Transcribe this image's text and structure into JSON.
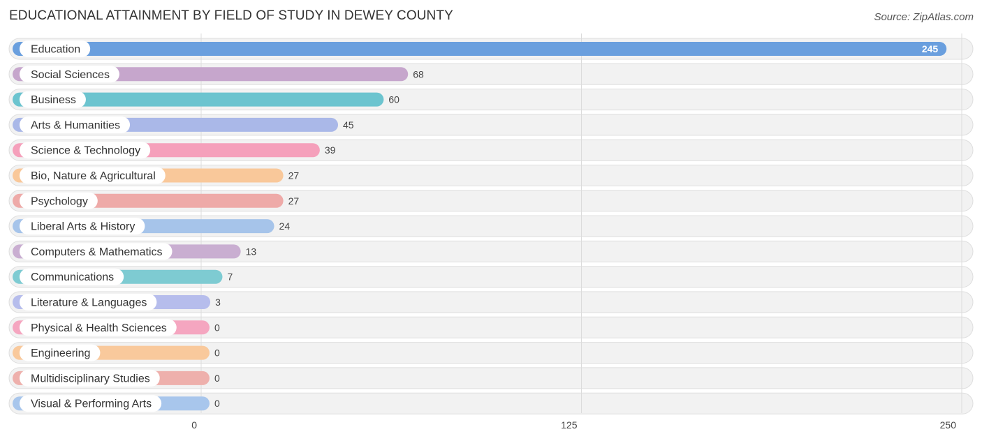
{
  "header": {
    "title": "EDUCATIONAL ATTAINMENT BY FIELD OF STUDY IN DEWEY COUNTY",
    "source": "Source: ZipAtlas.com"
  },
  "chart_data": {
    "type": "bar",
    "orientation": "horizontal",
    "categories": [
      "Education",
      "Social Sciences",
      "Business",
      "Arts & Humanities",
      "Science & Technology",
      "Bio, Nature & Agricultural",
      "Psychology",
      "Liberal Arts & History",
      "Computers & Mathematics",
      "Communications",
      "Literature & Languages",
      "Physical & Health Sciences",
      "Engineering",
      "Multidisciplinary Studies",
      "Visual & Performing Arts"
    ],
    "values": [
      245,
      68,
      60,
      45,
      39,
      27,
      27,
      24,
      13,
      7,
      3,
      0,
      0,
      0,
      0
    ],
    "colors": [
      "#6a9fde",
      "#c6a6cc",
      "#6cc4cf",
      "#aab8e8",
      "#f5a0bb",
      "#f9c89a",
      "#eeaaa8",
      "#a6c4ea",
      "#c9aed1",
      "#7ecbd2",
      "#b6bdec",
      "#f5a6c0",
      "#f9c99c",
      "#eeb0ac",
      "#a8c6ec"
    ],
    "xlim": [
      0,
      250
    ],
    "xticks": [
      0,
      125,
      250
    ],
    "grid": true
  }
}
